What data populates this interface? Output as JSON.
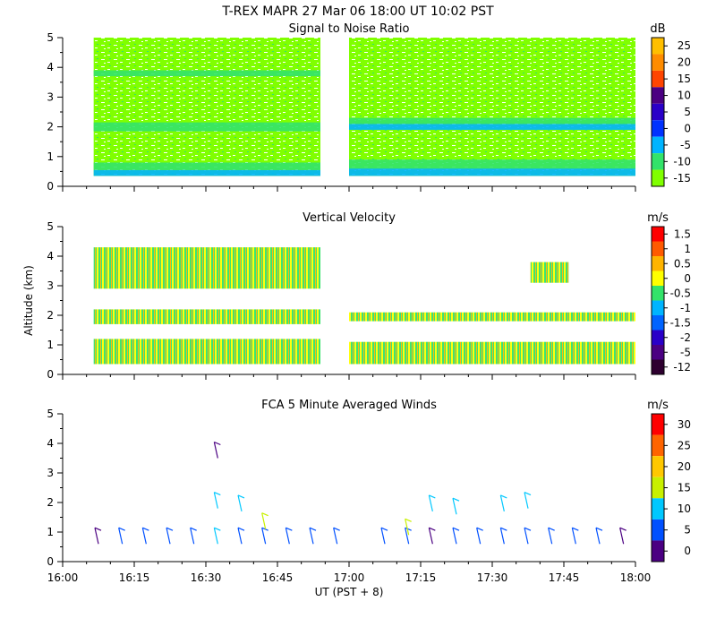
{
  "header": {
    "title": "T-REX   MAPR 27 Mar 06   18:00 UT   10:02   PST"
  },
  "x_axis": {
    "label": "UT  (PST + 8)",
    "range_minutes": [
      0,
      120
    ],
    "ticks": [
      {
        "min": 0,
        "label": "16:00"
      },
      {
        "min": 15,
        "label": "16:15"
      },
      {
        "min": 30,
        "label": "16:30"
      },
      {
        "min": 45,
        "label": "16:45"
      },
      {
        "min": 60,
        "label": "17:00"
      },
      {
        "min": 75,
        "label": "17:15"
      },
      {
        "min": 90,
        "label": "17:30"
      },
      {
        "min": 105,
        "label": "17:45"
      },
      {
        "min": 120,
        "label": "18:00"
      }
    ]
  },
  "y_axis": {
    "label": "Altitude (km)",
    "ylim": [
      0,
      5
    ],
    "ticks": [
      "0",
      "1",
      "2",
      "3",
      "4",
      "5"
    ]
  },
  "chart_data": [
    {
      "type": "heatmap",
      "title": "Signal to Noise Ratio",
      "unit": "dB",
      "xlabel": "",
      "ylabel": "",
      "xlim": [
        0,
        120
      ],
      "ylim": [
        0,
        5
      ],
      "colorbar": [
        {
          "label": "25",
          "color": "#ffbf00"
        },
        {
          "label": "20",
          "color": "#ff8c00"
        },
        {
          "label": "15",
          "color": "#ff4500"
        },
        {
          "label": "10",
          "color": "#4b0082"
        },
        {
          "label": "5",
          "color": "#2a00c8"
        },
        {
          "label": "0",
          "color": "#0032ff"
        },
        {
          "label": "-5",
          "color": "#00b4ff"
        },
        {
          "label": "-10",
          "color": "#33e36a"
        },
        {
          "label": "-15",
          "color": "#80ff00"
        }
      ],
      "data_gap_minutes": [
        54,
        60
      ],
      "coverage": [
        {
          "t0": 6.5,
          "t1": 54,
          "z0": 0.35,
          "z1": 5.0
        },
        {
          "t0": 60,
          "t1": 120,
          "z0": 0.35,
          "z1": 5.0
        }
      ],
      "layers": [
        {
          "t0": 6.5,
          "t1": 54,
          "z0": 0.35,
          "z1": 0.55,
          "color": "#00b4ff"
        },
        {
          "t0": 6.5,
          "t1": 54,
          "z0": 0.55,
          "z1": 0.8,
          "color": "#33e36a"
        },
        {
          "t0": 6.5,
          "t1": 54,
          "z0": 1.85,
          "z1": 2.15,
          "color": "#33e36a"
        },
        {
          "t0": 6.5,
          "t1": 54,
          "z0": 3.7,
          "z1": 3.9,
          "color": "#33e36a"
        },
        {
          "t0": 60,
          "t1": 120,
          "z0": 0.35,
          "z1": 0.6,
          "color": "#00b4ff"
        },
        {
          "t0": 60,
          "t1": 120,
          "z0": 0.6,
          "z1": 0.9,
          "color": "#33e36a"
        },
        {
          "t0": 60,
          "t1": 120,
          "z0": 1.9,
          "z1": 2.1,
          "color": "#00b4ff"
        },
        {
          "t0": 60,
          "t1": 120,
          "z0": 2.1,
          "z1": 2.3,
          "color": "#33e36a"
        }
      ]
    },
    {
      "type": "heatmap",
      "title": "Vertical Velocity",
      "unit": "m/s",
      "xlabel": "",
      "ylabel": "Altitude (km)",
      "xlim": [
        0,
        120
      ],
      "ylim": [
        0,
        5
      ],
      "colorbar": [
        {
          "label": "1.5",
          "color": "#ff0000"
        },
        {
          "label": "1",
          "color": "#ff5a00"
        },
        {
          "label": "0.5",
          "color": "#ffb400"
        },
        {
          "label": "0",
          "color": "#ffff00"
        },
        {
          "label": "-0.5",
          "color": "#33e36a"
        },
        {
          "label": "-1",
          "color": "#00b4ff"
        },
        {
          "label": "-1.5",
          "color": "#0064ff"
        },
        {
          "label": "-2",
          "color": "#2a00c8"
        },
        {
          "label": "-5",
          "color": "#4b0082"
        },
        {
          "label": "-12",
          "color": "#2e0030"
        }
      ],
      "data_gap_minutes": [
        54,
        60
      ],
      "layers": [
        {
          "t0": 6.5,
          "t1": 54,
          "z0": 0.35,
          "z1": 1.2,
          "color": "#33e36a"
        },
        {
          "t0": 6.5,
          "t1": 54,
          "z0": 1.7,
          "z1": 2.2,
          "color": "#ffff00"
        },
        {
          "t0": 6.5,
          "t1": 54,
          "z0": 2.9,
          "z1": 4.3,
          "color": "#ffff00"
        },
        {
          "t0": 60,
          "t1": 120,
          "z0": 0.35,
          "z1": 1.1,
          "color": "#ffff00"
        },
        {
          "t0": 60,
          "t1": 120,
          "z0": 1.8,
          "z1": 2.1,
          "color": "#33e36a"
        },
        {
          "t0": 98,
          "t1": 106,
          "z0": 3.1,
          "z1": 3.8,
          "color": "#00b4ff"
        }
      ]
    },
    {
      "type": "scatter",
      "title": "FCA 5 Minute Averaged Winds",
      "unit": "m/s",
      "xlabel": "UT  (PST + 8)",
      "ylabel": "",
      "xlim": [
        0,
        120
      ],
      "ylim": [
        0,
        5
      ],
      "colorbar": [
        {
          "label": "30",
          "color": "#ff0000"
        },
        {
          "label": "25",
          "color": "#ff6400"
        },
        {
          "label": "20",
          "color": "#ffc800"
        },
        {
          "label": "15",
          "color": "#c8f000"
        },
        {
          "label": "10",
          "color": "#00c8ff"
        },
        {
          "label": "5",
          "color": "#0050ff"
        },
        {
          "label": "0",
          "color": "#4b0082"
        }
      ],
      "wind_barbs": [
        {
          "t": 7.5,
          "z": 0.6,
          "speed": 4
        },
        {
          "t": 12.5,
          "z": 0.6,
          "speed": 6
        },
        {
          "t": 17.5,
          "z": 0.6,
          "speed": 8
        },
        {
          "t": 22.5,
          "z": 0.6,
          "speed": 8
        },
        {
          "t": 27.5,
          "z": 0.6,
          "speed": 9
        },
        {
          "t": 32.5,
          "z": 0.6,
          "speed": 10
        },
        {
          "t": 37.5,
          "z": 0.6,
          "speed": 9
        },
        {
          "t": 42.5,
          "z": 0.6,
          "speed": 8
        },
        {
          "t": 47.5,
          "z": 0.6,
          "speed": 7
        },
        {
          "t": 52.5,
          "z": 0.6,
          "speed": 7
        },
        {
          "t": 57.5,
          "z": 0.6,
          "speed": 6
        },
        {
          "t": 67.5,
          "z": 0.6,
          "speed": 5
        },
        {
          "t": 72.5,
          "z": 0.6,
          "speed": 6
        },
        {
          "t": 77.5,
          "z": 0.6,
          "speed": 3
        },
        {
          "t": 82.5,
          "z": 0.6,
          "speed": 6
        },
        {
          "t": 87.5,
          "z": 0.6,
          "speed": 8
        },
        {
          "t": 92.5,
          "z": 0.6,
          "speed": 9
        },
        {
          "t": 97.5,
          "z": 0.6,
          "speed": 7
        },
        {
          "t": 102.5,
          "z": 0.6,
          "speed": 7
        },
        {
          "t": 107.5,
          "z": 0.6,
          "speed": 8
        },
        {
          "t": 112.5,
          "z": 0.6,
          "speed": 7
        },
        {
          "t": 117.5,
          "z": 0.6,
          "speed": 2
        },
        {
          "t": 42.5,
          "z": 1.1,
          "speed": 18
        },
        {
          "t": 72.5,
          "z": 0.9,
          "speed": 16
        },
        {
          "t": 32.5,
          "z": 1.8,
          "speed": 13
        },
        {
          "t": 37.5,
          "z": 1.7,
          "speed": 13
        },
        {
          "t": 32.5,
          "z": 3.5,
          "speed": 4
        },
        {
          "t": 77.5,
          "z": 1.7,
          "speed": 14
        },
        {
          "t": 82.5,
          "z": 1.6,
          "speed": 14
        },
        {
          "t": 92.5,
          "z": 1.7,
          "speed": 14
        },
        {
          "t": 97.5,
          "z": 1.8,
          "speed": 13
        }
      ]
    }
  ]
}
